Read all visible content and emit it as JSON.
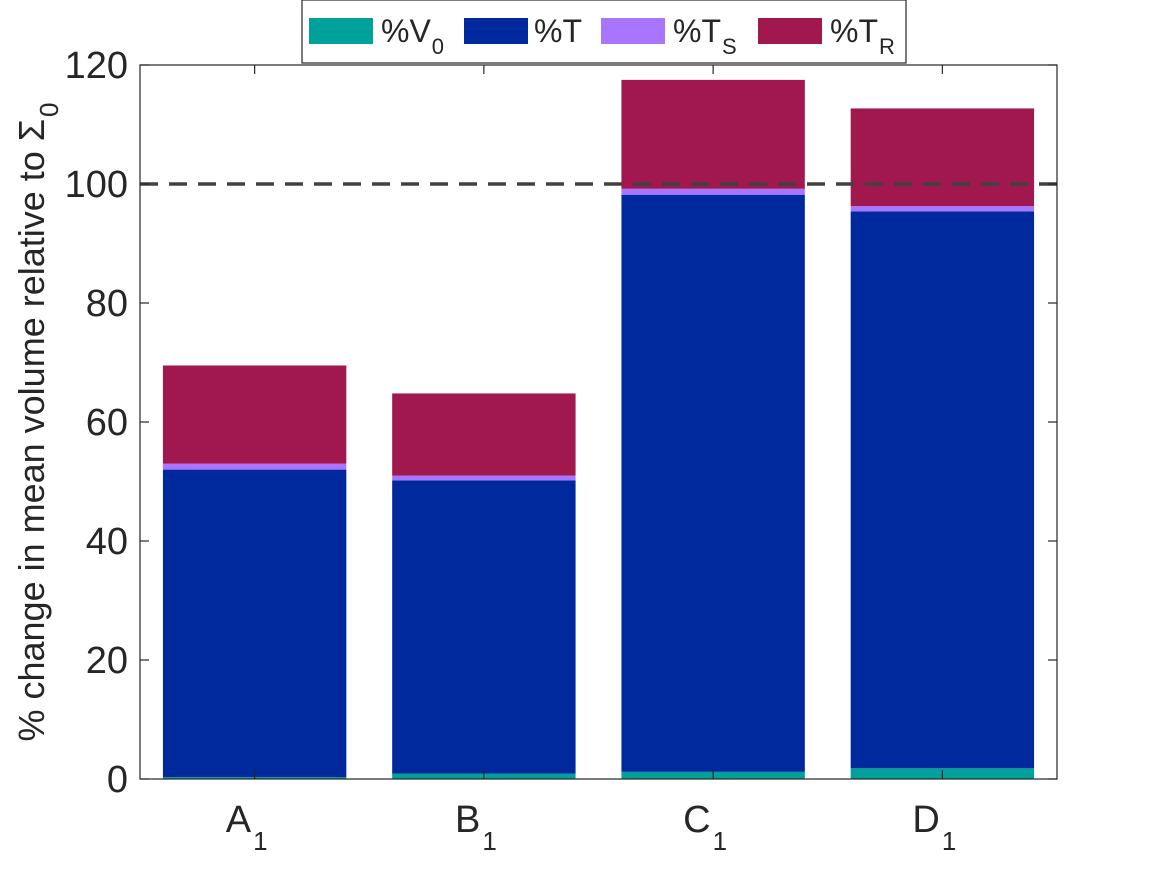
{
  "chart_data": {
    "type": "bar",
    "stacked": true,
    "categories": [
      {
        "main": "A",
        "sub": "1"
      },
      {
        "main": "B",
        "sub": "1"
      },
      {
        "main": "C",
        "sub": "1"
      },
      {
        "main": "D",
        "sub": "1"
      }
    ],
    "series": [
      {
        "name": "%V",
        "name_sub": "0",
        "color": "#00A19A",
        "values": [
          0.3,
          0.9,
          1.2,
          1.8
        ]
      },
      {
        "name": "%T",
        "name_sub": "",
        "color": "#00299E",
        "values": [
          51.7,
          49.3,
          97.0,
          93.6
        ]
      },
      {
        "name": "%T",
        "name_sub": "S",
        "color": "#A875FF",
        "values": [
          1.0,
          0.8,
          1.0,
          0.9
        ]
      },
      {
        "name": "%T",
        "name_sub": "R",
        "color": "#A0184E",
        "values": [
          16.5,
          13.8,
          18.3,
          16.4
        ]
      }
    ],
    "ylabel": "% change in mean volume relative to Σ",
    "ylabel_sub": "0",
    "ylim": [
      0,
      120
    ],
    "yticks": [
      "0",
      "20",
      "40",
      "60",
      "80",
      "100",
      "120"
    ],
    "reference_line": {
      "y": 100,
      "style": "dashed",
      "color": "#404040"
    },
    "legend_position": "top, horizontal",
    "grid": false
  }
}
